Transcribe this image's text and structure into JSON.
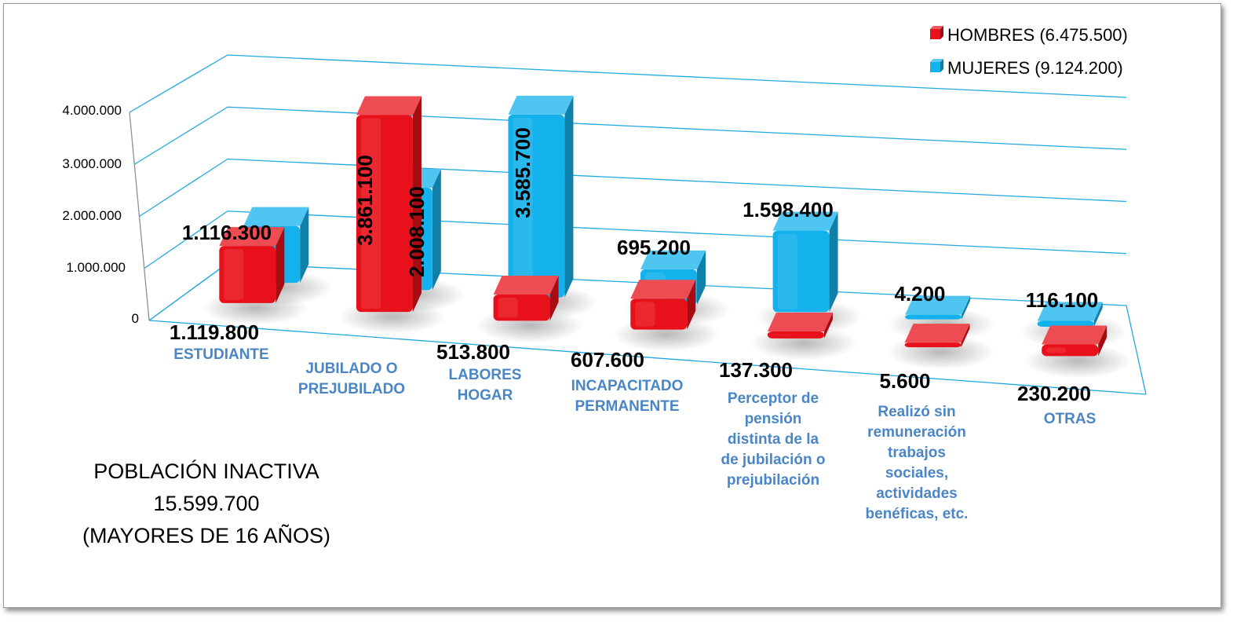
{
  "chart_data": {
    "type": "bar",
    "categories": [
      [
        "ESTUDIANTE"
      ],
      [
        "JUBILADO O",
        "PREJUBILADO"
      ],
      [
        "LABORES",
        "HOGAR"
      ],
      [
        "INCAPACITADO",
        "PERMANENTE"
      ],
      [
        "Perceptor de",
        "pensión",
        "distinta de la",
        "de jubilación o",
        "prejubilación"
      ],
      [
        "Realizó sin",
        "remuneración",
        "trabajos",
        "sociales,",
        "actividades",
        "benéficas, etc."
      ],
      [
        "OTRAS"
      ]
    ],
    "series": [
      {
        "name": "HOMBRES (6.475.500)",
        "color": "#e8101a",
        "values": [
          1119800,
          3861100,
          513800,
          607600,
          137300,
          5600,
          230200
        ],
        "labels": [
          "1.119.800",
          "3.861.100",
          "513.800",
          "607.600",
          "137.300",
          "5.600",
          "230.200"
        ]
      },
      {
        "name": "MUJERES (9.124.200)",
        "color": "#14b2ec",
        "values": [
          1116300,
          2008100,
          3585700,
          695200,
          1598400,
          4200,
          116100
        ],
        "labels": [
          "1.116.300",
          "2.008.100",
          "3.585.700",
          "695.200",
          "1.598.400",
          "4.200",
          "116.100"
        ]
      }
    ],
    "yticks": [
      "0",
      "1.000.000",
      "2.000.000",
      "3.000.000",
      "4.000.000"
    ],
    "ylim": [
      0,
      4000000
    ],
    "grid": true,
    "legend": "top-right",
    "title": [
      "POBLACIÓN INACTIVA",
      "15.599.700",
      "(MAYORES DE 16 AÑOS)"
    ],
    "gridline_color": "#21a9df"
  }
}
